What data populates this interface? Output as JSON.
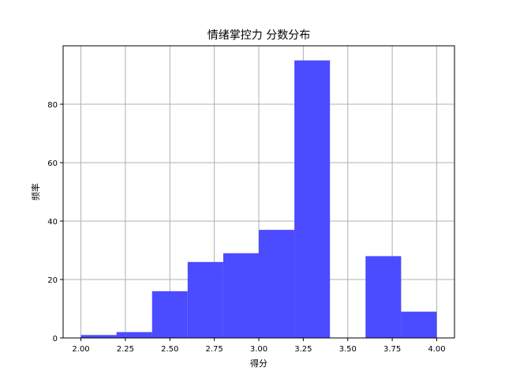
{
  "chart_data": {
    "type": "bar",
    "title": "情绪掌控力 分数分布",
    "xlabel": "得分",
    "ylabel": "频率",
    "xlim": [
      1.9,
      4.1
    ],
    "ylim": [
      0,
      100
    ],
    "x_ticks": [
      "2.00",
      "2.25",
      "2.50",
      "2.75",
      "3.00",
      "3.25",
      "3.50",
      "3.75",
      "4.00"
    ],
    "x_tick_values": [
      2.0,
      2.25,
      2.5,
      2.75,
      3.0,
      3.25,
      3.5,
      3.75,
      4.0
    ],
    "y_ticks": [
      "0",
      "20",
      "40",
      "60",
      "80"
    ],
    "y_tick_values": [
      0,
      20,
      40,
      60,
      80
    ],
    "bin_edges": [
      2.0,
      2.2,
      2.4,
      2.6,
      2.8,
      3.0,
      3.2,
      3.4,
      3.6,
      3.8,
      4.0
    ],
    "values": [
      1,
      2,
      16,
      26,
      29,
      37,
      95,
      0,
      28,
      9
    ],
    "grid": true,
    "bar_color": "#4b4bff"
  }
}
